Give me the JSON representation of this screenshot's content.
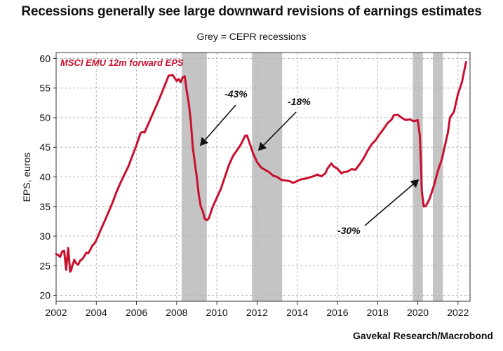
{
  "header": {
    "title": "Recessions generally see large downward revisions of earnings estimates",
    "subtitle": "Grey = CEPR recessions"
  },
  "footer": {
    "source": "Gavekal Research/Macrobond"
  },
  "chart_data": {
    "type": "line",
    "title": "Recessions generally see large downward revisions of earnings estimates",
    "subtitle": "Grey = CEPR recessions",
    "xlabel": "",
    "ylabel": "EPS, euros",
    "xlim": [
      2002,
      2022.6
    ],
    "ylim": [
      19,
      61
    ],
    "x_ticks": [
      2002,
      2004,
      2006,
      2008,
      2010,
      2012,
      2014,
      2016,
      2018,
      2020,
      2022
    ],
    "y_ticks": [
      20,
      25,
      30,
      35,
      40,
      45,
      50,
      55,
      60
    ],
    "grid": true,
    "series_color": "#c8102e",
    "recession_color": "#c4c4c4",
    "recessions": [
      [
        2008.25,
        2009.5
      ],
      [
        2011.75,
        2013.25
      ],
      [
        2019.75,
        2020.25
      ],
      [
        2020.75,
        2021.25
      ]
    ],
    "series": [
      {
        "name": "MSCI EMU 12m forward EPS",
        "x": [
          2002.0,
          2002.1,
          2002.2,
          2002.3,
          2002.4,
          2002.5,
          2002.6,
          2002.7,
          2002.75,
          2002.8,
          2002.85,
          2002.9,
          2003.0,
          2003.1,
          2003.2,
          2003.3,
          2003.4,
          2003.5,
          2003.6,
          2003.7,
          2003.8,
          2003.9,
          2004.0,
          2004.2,
          2004.4,
          2004.6,
          2004.8,
          2005.0,
          2005.2,
          2005.4,
          2005.6,
          2005.8,
          2006.0,
          2006.2,
          2006.3,
          2006.4,
          2006.6,
          2006.8,
          2007.0,
          2007.2,
          2007.4,
          2007.6,
          2007.8,
          2008.0,
          2008.1,
          2008.2,
          2008.3,
          2008.4,
          2008.5,
          2008.6,
          2008.7,
          2008.8,
          2009.0,
          2009.1,
          2009.2,
          2009.3,
          2009.4,
          2009.5,
          2009.6,
          2009.7,
          2009.8,
          2010.0,
          2010.2,
          2010.4,
          2010.6,
          2010.8,
          2011.0,
          2011.2,
          2011.4,
          2011.5,
          2011.6,
          2011.7,
          2011.8,
          2012.0,
          2012.2,
          2012.4,
          2012.6,
          2012.8,
          2013.0,
          2013.2,
          2013.4,
          2013.6,
          2013.8,
          2014.0,
          2014.2,
          2014.4,
          2014.6,
          2014.8,
          2015.0,
          2015.2,
          2015.4,
          2015.5,
          2015.7,
          2015.8,
          2016.0,
          2016.2,
          2016.3,
          2016.5,
          2016.7,
          2016.9,
          2017.1,
          2017.3,
          2017.5,
          2017.7,
          2017.9,
          2018.1,
          2018.3,
          2018.5,
          2018.7,
          2018.8,
          2019.0,
          2019.2,
          2019.4,
          2019.6,
          2019.8,
          2019.9,
          2020.0,
          2020.1,
          2020.15,
          2020.2,
          2020.3,
          2020.4,
          2020.5,
          2020.6,
          2020.8,
          2021.0,
          2021.2,
          2021.4,
          2021.5,
          2021.6,
          2021.8,
          2022.0,
          2022.2,
          2022.4
        ],
        "values": [
          27.0,
          26.8,
          26.5,
          27.4,
          27.5,
          24.3,
          28.0,
          24.0,
          24.2,
          25.0,
          25.4,
          26.0,
          25.4,
          25.2,
          25.9,
          26.1,
          26.6,
          27.2,
          27.1,
          27.7,
          28.4,
          28.7,
          29.3,
          30.9,
          32.4,
          34.0,
          35.6,
          37.4,
          39.0,
          40.4,
          41.8,
          43.6,
          45.4,
          47.4,
          47.6,
          47.5,
          49.0,
          50.6,
          52.1,
          53.7,
          55.4,
          57.1,
          57.2,
          56.2,
          56.5,
          56.0,
          56.8,
          57.0,
          54.5,
          52.5,
          49.5,
          45.0,
          40.0,
          37.0,
          35.0,
          34.2,
          32.9,
          32.7,
          33.0,
          34.0,
          35.0,
          36.5,
          38.0,
          40.0,
          42.0,
          43.5,
          44.5,
          45.5,
          46.9,
          47.0,
          46.0,
          45.0,
          44.0,
          42.5,
          41.6,
          41.2,
          40.8,
          40.2,
          40.0,
          39.5,
          39.4,
          39.3,
          39.0,
          39.3,
          39.6,
          39.7,
          39.9,
          40.1,
          40.4,
          40.1,
          40.6,
          41.4,
          42.3,
          41.8,
          41.4,
          40.6,
          40.8,
          40.9,
          41.3,
          41.2,
          42.1,
          43.1,
          44.4,
          45.5,
          46.2,
          47.2,
          48.1,
          49.1,
          49.7,
          50.4,
          50.5,
          50.0,
          49.6,
          49.7,
          49.4,
          49.5,
          49.6,
          47.0,
          43.0,
          37.5,
          35.0,
          35.1,
          35.7,
          36.4,
          38.5,
          41.0,
          43.0,
          46.0,
          47.5,
          50.0,
          51.0,
          54.0,
          56.0,
          59.4
        ]
      }
    ],
    "annotations": [
      {
        "text": "-43%",
        "x": 2009.05,
        "y": 45.5
      },
      {
        "text": "-18%",
        "x": 2011.95,
        "y": 44.5
      },
      {
        "text": "-30%",
        "x": 2020.05,
        "y": 39.5
      }
    ]
  }
}
